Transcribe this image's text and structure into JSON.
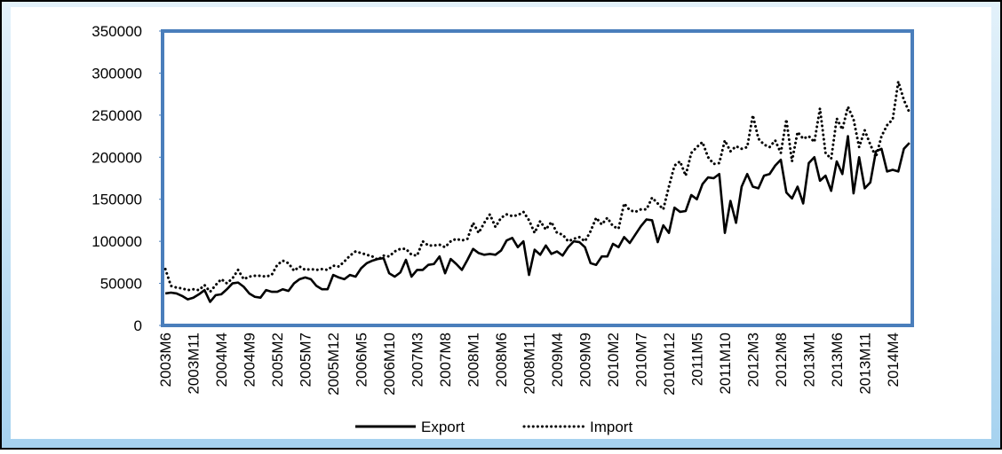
{
  "chart_data": {
    "type": "line",
    "categories": [
      "2003M6",
      null,
      null,
      null,
      null,
      "2003M11",
      null,
      null,
      null,
      null,
      "2004M4",
      null,
      null,
      null,
      null,
      "2004M9",
      null,
      null,
      null,
      null,
      "2005M2",
      null,
      null,
      null,
      null,
      "2005M7",
      null,
      null,
      null,
      null,
      "2005M12",
      null,
      null,
      null,
      null,
      "2006M5",
      null,
      null,
      null,
      null,
      "2006M10",
      null,
      null,
      null,
      null,
      "2007M3",
      null,
      null,
      null,
      null,
      "2007M8",
      null,
      null,
      null,
      null,
      "2008M1",
      null,
      null,
      null,
      null,
      "2008M6",
      null,
      null,
      null,
      null,
      "2008M11",
      null,
      null,
      null,
      null,
      "2009M4",
      null,
      null,
      null,
      null,
      "2009M9",
      null,
      null,
      null,
      null,
      "2010M2",
      null,
      null,
      null,
      null,
      "2010M7",
      null,
      null,
      null,
      null,
      "2010M12",
      null,
      null,
      null,
      null,
      "2011M5",
      null,
      null,
      null,
      null,
      "2011M10",
      null,
      null,
      null,
      null,
      "2012M3",
      null,
      null,
      null,
      null,
      "2012M8",
      null,
      null,
      null,
      null,
      "2013M1",
      null,
      null,
      null,
      null,
      "2013M6",
      null,
      null,
      null,
      null,
      "2013M11",
      null,
      null,
      null,
      null,
      "2014M4",
      null,
      null,
      null
    ],
    "series": [
      {
        "name": "Export",
        "color": "#000000",
        "style": "solid",
        "values": [
          38000,
          39000,
          38000,
          35000,
          31000,
          33000,
          37000,
          42000,
          28000,
          36000,
          37000,
          43000,
          50000,
          51000,
          46000,
          38000,
          34000,
          33000,
          42000,
          40000,
          40000,
          43000,
          41000,
          50000,
          55000,
          57000,
          55000,
          47000,
          43000,
          43000,
          60000,
          57000,
          55000,
          60000,
          58000,
          68000,
          74000,
          77000,
          79000,
          80000,
          62000,
          58000,
          63000,
          78000,
          58000,
          66000,
          66000,
          72000,
          73000,
          82000,
          62000,
          79000,
          73000,
          66000,
          78000,
          91000,
          86000,
          84000,
          85000,
          84000,
          89000,
          101000,
          104000,
          93000,
          100000,
          60000,
          90000,
          84000,
          95000,
          85000,
          88000,
          83000,
          93000,
          100000,
          99000,
          93000,
          74000,
          72000,
          82000,
          82000,
          97000,
          93000,
          105000,
          98000,
          108000,
          118000,
          126000,
          125000,
          99000,
          119000,
          110000,
          140000,
          135000,
          136000,
          155000,
          150000,
          168000,
          176000,
          175000,
          180000,
          110000,
          148000,
          122000,
          165000,
          180000,
          165000,
          163000,
          178000,
          180000,
          190000,
          197000,
          158000,
          151000,
          165000,
          145000,
          193000,
          200000,
          172000,
          178000,
          160000,
          195000,
          180000,
          225000,
          157000,
          200000,
          163000,
          170000,
          207000,
          210000,
          183000,
          185000,
          183000,
          210000,
          217000
        ]
      },
      {
        "name": "Import",
        "color": "#000000",
        "style": "dotted",
        "values": [
          67000,
          47000,
          45000,
          44000,
          42000,
          43000,
          42000,
          48000,
          40000,
          48000,
          55000,
          50000,
          56000,
          66000,
          55000,
          58000,
          59000,
          59000,
          58000,
          60000,
          72000,
          77000,
          74000,
          65000,
          70000,
          66000,
          67000,
          66000,
          67000,
          66000,
          71000,
          70000,
          76000,
          83000,
          88000,
          86000,
          84000,
          82000,
          78000,
          83000,
          82000,
          88000,
          91000,
          91000,
          84000,
          83000,
          100000,
          95000,
          95000,
          96000,
          93000,
          100000,
          103000,
          101000,
          103000,
          122000,
          110000,
          122000,
          132000,
          117000,
          128000,
          132000,
          130000,
          131000,
          135000,
          125000,
          110000,
          124000,
          114000,
          123000,
          110000,
          108000,
          100000,
          103000,
          105000,
          100000,
          112000,
          128000,
          120000,
          128000,
          118000,
          115000,
          145000,
          137000,
          135000,
          138000,
          138000,
          152000,
          145000,
          138000,
          165000,
          190000,
          195000,
          178000,
          205000,
          212000,
          218000,
          200000,
          192000,
          193000,
          220000,
          207000,
          213000,
          210000,
          212000,
          250000,
          222000,
          215000,
          212000,
          220000,
          205000,
          245000,
          195000,
          230000,
          222000,
          225000,
          218000,
          258000,
          205000,
          198000,
          246000,
          233000,
          260000,
          245000,
          212000,
          232000,
          215000,
          200000,
          225000,
          238000,
          245000,
          290000,
          268000,
          253000
        ]
      }
    ],
    "ylim": [
      0,
      350000
    ],
    "yticks": [
      0,
      50000,
      100000,
      150000,
      200000,
      250000,
      300000,
      350000
    ],
    "legend": "bottom"
  }
}
